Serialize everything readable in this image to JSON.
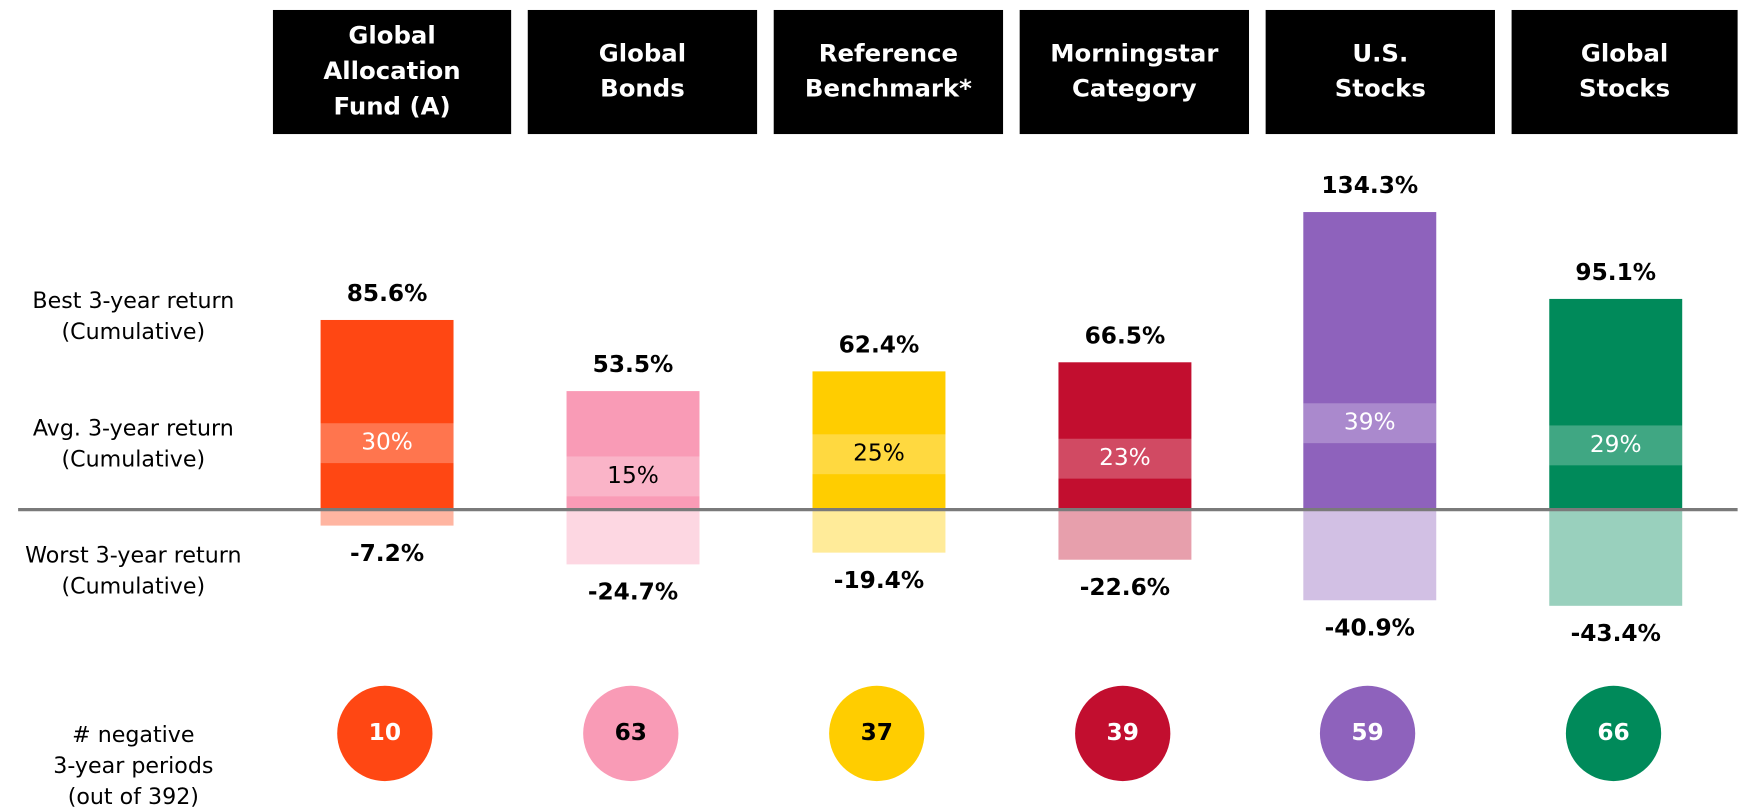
{
  "chart_data": {
    "type": "range_bar",
    "categories": [
      [
        "Global",
        "Allocation",
        "Fund (A)"
      ],
      [
        "Global",
        "Bonds"
      ],
      [
        "Reference",
        "Benchmark*"
      ],
      [
        "Morningstar",
        "Category"
      ],
      [
        "U.S.",
        "Stocks"
      ],
      [
        "Global",
        "Stocks"
      ]
    ],
    "best": [
      85.6,
      53.5,
      62.4,
      66.5,
      134.3,
      95.1
    ],
    "best_labels": [
      "85.6%",
      "53.5%",
      "62.4%",
      "66.5%",
      "134.3%",
      "95.1%"
    ],
    "average": [
      30,
      15,
      25,
      23,
      39,
      29
    ],
    "average_labels": [
      "30%",
      "15%",
      "25%",
      "23%",
      "39%",
      "29%"
    ],
    "worst": [
      -7.2,
      -24.7,
      -19.4,
      -22.6,
      -40.9,
      -43.4
    ],
    "worst_labels": [
      "-7.2%",
      "-24.7%",
      "-19.4%",
      "-22.6%",
      "-40.9%",
      "-43.4%"
    ],
    "negative_periods": [
      10,
      63,
      37,
      39,
      59,
      66
    ],
    "colors": [
      "#ff4713",
      "#f99bb6",
      "#ffcd00",
      "#c20e2f",
      "#8e62bc",
      "#008a5a"
    ],
    "text_colors": [
      "#ffffff",
      "#000000",
      "#000000",
      "#ffffff",
      "#ffffff",
      "#ffffff"
    ],
    "row_labels": {
      "best": [
        "Best 3-year return",
        "(Cumulative)"
      ],
      "average": [
        "Avg. 3-year return",
        "(Cumulative)"
      ],
      "worst": [
        "Worst 3-year return",
        "(Cumulative)"
      ],
      "negative": [
        "# negative",
        "3-year periods",
        "(out of 392)"
      ]
    }
  }
}
